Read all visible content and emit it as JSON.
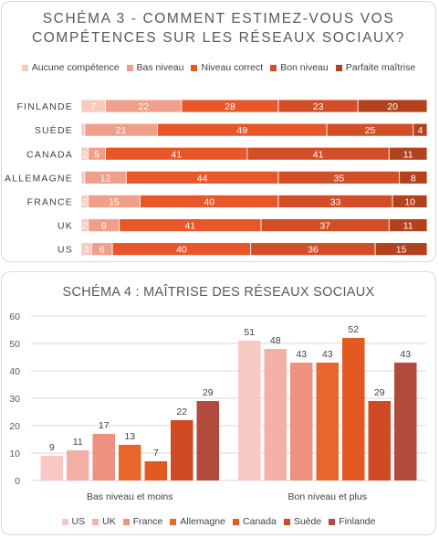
{
  "chart_data": [
    {
      "type": "bar",
      "orientation": "horizontal",
      "stacked": "percent",
      "title": "SCHÉMA 3 - COMMENT ESTIMEZ-VOUS VOS COMPÉTENCES SUR LES RÉSEAUX SOCIAUX?",
      "title_lines": [
        "SCHÉMA 3 - COMMENT ESTIMEZ-VOUS VOS",
        "COMPÉTENCES SUR LES RÉSEAUX SOCIAUX?"
      ],
      "categories": [
        "FINLANDE",
        "SUÈDE",
        "CANADA",
        "ALLEMAGNE",
        "FRANCE",
        "UK",
        "US"
      ],
      "series": [
        {
          "name": "Aucune compétence",
          "color": "#f8c9bd",
          "values": [
            7,
            1,
            2,
            1,
            2,
            2,
            3
          ],
          "labels": [
            "7",
            "",
            "2",
            "",
            "2",
            "2",
            "3"
          ]
        },
        {
          "name": "Bas niveau",
          "color": "#f0a08a",
          "values": [
            22,
            21,
            5,
            12,
            15,
            9,
            6
          ],
          "labels": [
            "22",
            "21",
            "5",
            "12",
            "15",
            "9",
            "6"
          ]
        },
        {
          "name": "Niveau correct",
          "color": "#e8572a",
          "values": [
            28,
            49,
            41,
            44,
            40,
            41,
            40
          ],
          "labels": [
            "28",
            "49",
            "41",
            "44",
            "40",
            "41",
            "40"
          ]
        },
        {
          "name": "Bon niveau",
          "color": "#d24e27",
          "values": [
            23,
            25,
            41,
            35,
            33,
            37,
            36
          ],
          "labels": [
            "23",
            "25",
            "41",
            "35",
            "33",
            "37",
            "36"
          ]
        },
        {
          "name": "Parfaite maîtrise",
          "color": "#b2421d",
          "values": [
            20,
            4,
            11,
            8,
            10,
            11,
            15
          ],
          "labels": [
            "20",
            "4",
            "11",
            "8",
            "10",
            "11",
            "15"
          ]
        }
      ],
      "legend_position": "top"
    },
    {
      "type": "bar",
      "title": "SCHÉMA 4 : MAÎTRISE DES RÉSEAUX SOCIAUX",
      "categories": [
        "Bas niveau et moins",
        "Bon niveau et plus"
      ],
      "ylim": [
        0,
        60
      ],
      "yticks": [
        0,
        10,
        20,
        30,
        40,
        50,
        60
      ],
      "grid": true,
      "series": [
        {
          "name": "US",
          "color": "#f8c9c4",
          "values": [
            9,
            51
          ]
        },
        {
          "name": "UK",
          "color": "#f4b0a6",
          "values": [
            11,
            48
          ]
        },
        {
          "name": "France",
          "color": "#ee917f",
          "values": [
            17,
            43
          ]
        },
        {
          "name": "Allemagne",
          "color": "#e8652c",
          "values": [
            13,
            43
          ]
        },
        {
          "name": "Canada",
          "color": "#e25a22",
          "values": [
            7,
            52
          ]
        },
        {
          "name": "Suède",
          "color": "#cf4b24",
          "values": [
            22,
            29
          ]
        },
        {
          "name": "Finlande",
          "color": "#b34b3c",
          "values": [
            29,
            43
          ]
        }
      ],
      "legend_position": "bottom"
    }
  ]
}
